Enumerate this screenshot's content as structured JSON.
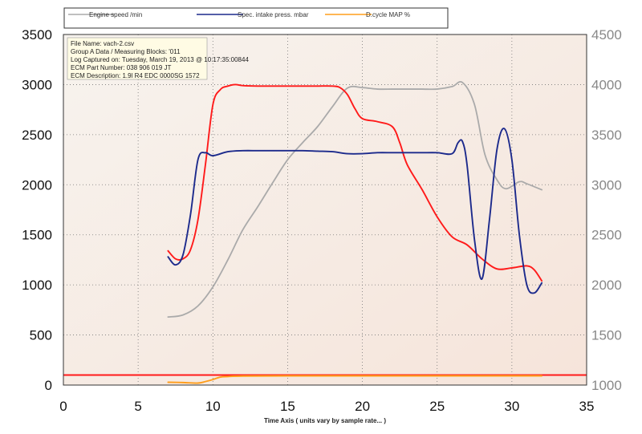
{
  "chart_data": {
    "type": "line",
    "xlabel": "Time Axis ( units vary by sample rate... )",
    "xlim": [
      0,
      35
    ],
    "x_ticks": [
      0,
      5,
      10,
      15,
      20,
      25,
      30,
      35
    ],
    "y_left": {
      "lim": [
        0,
        3500
      ],
      "ticks": [
        0,
        500,
        1000,
        1500,
        2000,
        2500,
        3000,
        3500
      ]
    },
    "y_right": {
      "lim": [
        1000,
        4500
      ],
      "ticks": [
        1000,
        1500,
        2000,
        2500,
        3000,
        3500,
        4000,
        4500
      ]
    },
    "grid": true,
    "legend_position": "top",
    "series": [
      {
        "name": "Engine speed /min",
        "color": "#aaaaaa",
        "axis": "right",
        "x": [
          7,
          8,
          9,
          10,
          11,
          12,
          13,
          14,
          15,
          16,
          17,
          18,
          19,
          20,
          21,
          22,
          23,
          24,
          25,
          26,
          26.7,
          27.5,
          28.2,
          29,
          29.6,
          30.5,
          31,
          32
        ],
        "y": [
          1680,
          1700,
          1790,
          1980,
          2250,
          2550,
          2780,
          3020,
          3250,
          3420,
          3580,
          3780,
          3965,
          3970,
          3955,
          3955,
          3955,
          3955,
          3955,
          3980,
          4020,
          3800,
          3300,
          3050,
          2960,
          3030,
          3010,
          2950
        ]
      },
      {
        "name": "Spec. intake press. mbar",
        "color": "#1c2a8c",
        "axis": "left",
        "x": [
          7,
          7.5,
          8,
          8.5,
          9,
          9.5,
          10,
          11,
          12,
          13,
          14,
          15,
          16,
          17,
          18,
          19,
          20,
          21,
          22,
          23,
          24,
          25,
          26,
          26.4,
          26.7,
          27,
          27.5,
          28,
          28.5,
          29,
          29.5,
          30,
          30.5,
          31,
          31.5,
          32
        ],
        "y": [
          1280,
          1200,
          1300,
          1700,
          2250,
          2320,
          2290,
          2330,
          2340,
          2340,
          2340,
          2340,
          2340,
          2335,
          2330,
          2310,
          2310,
          2320,
          2320,
          2320,
          2320,
          2320,
          2310,
          2420,
          2430,
          2200,
          1450,
          1060,
          1650,
          2350,
          2560,
          2250,
          1500,
          1000,
          920,
          1020
        ]
      },
      {
        "name": "D.cycle MAP %",
        "color": "#ff9e1c",
        "axis": "left",
        "x": [
          7,
          8,
          9,
          9.5,
          10,
          10.5,
          11,
          12,
          15,
          20,
          25,
          30,
          32
        ],
        "y": [
          28,
          25,
          20,
          35,
          55,
          80,
          85,
          90,
          92,
          92,
          92,
          92,
          92
        ]
      },
      {
        "name": "",
        "color": "#ff1a1a",
        "axis": "left",
        "x": [
          7,
          7.5,
          8,
          8.5,
          9,
          9.5,
          10,
          10.5,
          11,
          11.5,
          12,
          13,
          14,
          15,
          16,
          17,
          18,
          18.5,
          19,
          19.5,
          20,
          21,
          22,
          22.5,
          23,
          24,
          25,
          26,
          27,
          28,
          29,
          30,
          31,
          31.5,
          32
        ],
        "y": [
          1340,
          1260,
          1260,
          1350,
          1650,
          2200,
          2800,
          2950,
          2985,
          3000,
          2990,
          2985,
          2985,
          2985,
          2985,
          2985,
          2985,
          2970,
          2900,
          2760,
          2660,
          2630,
          2580,
          2420,
          2200,
          1950,
          1680,
          1480,
          1400,
          1260,
          1160,
          1170,
          1190,
          1150,
          1040
        ]
      }
    ],
    "reference_line": {
      "y": 100,
      "color": "#ff1a1a"
    },
    "info_box": [
      "File Name: vach-2.csv",
      "Group A Data / Measuring Blocks: '011",
      "Log Captured on: Tuesday, March 19, 2013 @ 10:17:35:00844",
      "ECM Part Number: 038 906 019 JT",
      "ECM Description: 1.9l R4 EDC 0000SG 1572"
    ]
  }
}
